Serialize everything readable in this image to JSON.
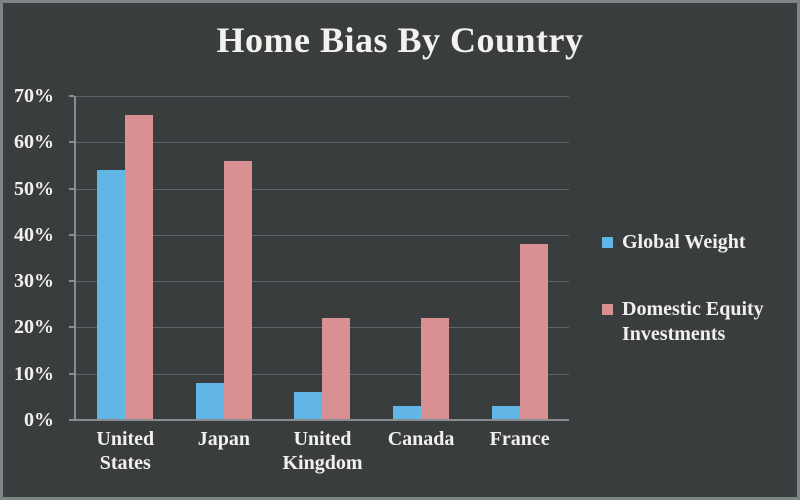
{
  "chart_data": {
    "type": "bar",
    "title": "Home Bias By Country",
    "categories": [
      "United States",
      "Japan",
      "United Kingdom",
      "Canada",
      "France"
    ],
    "series": [
      {
        "name": "Global Weight",
        "color": "#61b6e5",
        "values": [
          54,
          8,
          6,
          3,
          3
        ]
      },
      {
        "name": "Domestic Equity Investments",
        "color": "#d99093",
        "values": [
          66,
          56,
          22,
          22,
          38
        ]
      }
    ],
    "ylim": [
      0,
      70
    ],
    "yticks": [
      0,
      10,
      20,
      30,
      40,
      50,
      60,
      70
    ],
    "ytick_labels": [
      "0%",
      "10%",
      "20%",
      "30%",
      "40%",
      "50%",
      "60%",
      "70%"
    ],
    "xlabel": "",
    "ylabel": "",
    "grid": "horizontal",
    "legend_position": "right"
  },
  "colors": {
    "background": "#3a3d3e",
    "frame_border": "#7f8486",
    "text": "#f2f0ec",
    "gridline": "#5f6366",
    "axis": "#888c8e"
  }
}
